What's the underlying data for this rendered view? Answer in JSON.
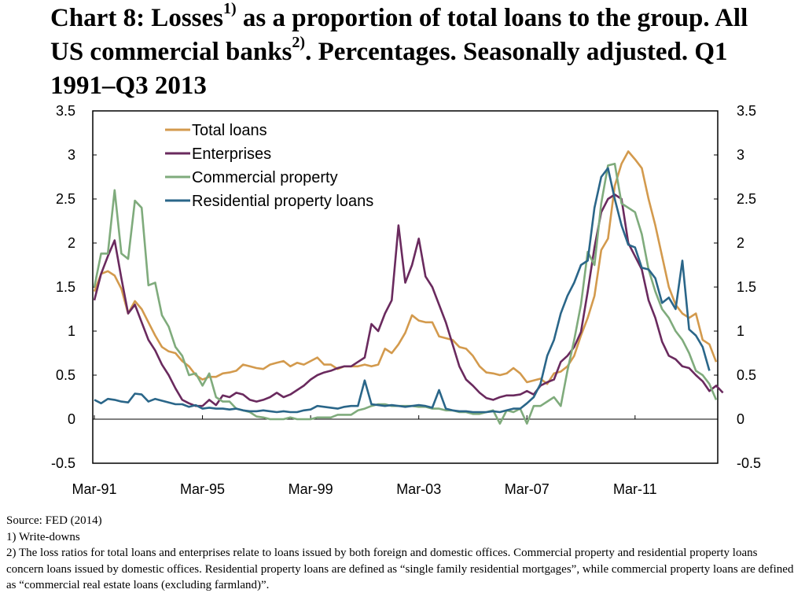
{
  "title": {
    "part1": "Chart 8: Losses",
    "sup1": "1)",
    "part2": " as a proportion of total loans to the group. All US commercial banks",
    "sup2": "2)",
    "part3": ". Percentages. Seasonally adjusted. Q1 1991–Q3 2013"
  },
  "notes": {
    "source": "Source: FED (2014)",
    "note1": "1) Write-downs",
    "note2": "2) The loss ratios for total loans and enterprises relate to loans issued by both foreign and domestic offices. Commercial property and residential property loans concern loans issued by domestic offices. Residential property loans are defined as “single family residential mortgages”, while commercial property loans are defined as “commercial real estate loans (excluding farmland)”."
  },
  "chart_data": {
    "type": "line",
    "x_start": "Q1 1991",
    "x_end": "Q3 2013",
    "x_ticks": [
      "Mar-91",
      "Mar-95",
      "Mar-99",
      "Mar-03",
      "Mar-07",
      "Mar-11"
    ],
    "y_ticks": [
      "3.5",
      "3",
      "2.5",
      "2",
      "1.5",
      "1",
      "0.5",
      "0",
      "-0.5"
    ],
    "ylim": [
      -0.5,
      3.5
    ],
    "y_axis_both_sides": true,
    "grid": false,
    "legend_position": "top-left",
    "series": [
      {
        "name": "Total loans",
        "color": "#d39a4d",
        "values": [
          1.45,
          1.65,
          1.68,
          1.63,
          1.48,
          1.2,
          1.34,
          1.25,
          1.1,
          0.95,
          0.82,
          0.77,
          0.75,
          0.66,
          0.6,
          0.5,
          0.45,
          0.48,
          0.48,
          0.52,
          0.53,
          0.55,
          0.62,
          0.6,
          0.58,
          0.57,
          0.62,
          0.64,
          0.66,
          0.6,
          0.64,
          0.62,
          0.66,
          0.7,
          0.62,
          0.62,
          0.57,
          0.6,
          0.6,
          0.6,
          0.62,
          0.6,
          0.62,
          0.8,
          0.75,
          0.85,
          0.98,
          1.18,
          1.12,
          1.1,
          1.1,
          0.94,
          0.92,
          0.9,
          0.82,
          0.8,
          0.72,
          0.6,
          0.53,
          0.52,
          0.5,
          0.52,
          0.58,
          0.52,
          0.42,
          0.44,
          0.46,
          0.4,
          0.52,
          0.54,
          0.6,
          0.72,
          0.95,
          1.15,
          1.4,
          1.92,
          2.05,
          2.65,
          2.9,
          3.04,
          2.95,
          2.85,
          2.5,
          2.2,
          1.85,
          1.5,
          1.3,
          1.2,
          1.15,
          1.2,
          0.9,
          0.85,
          0.65
        ]
      },
      {
        "name": "Enterprises",
        "color": "#6a2a5e",
        "values": [
          1.35,
          1.65,
          1.85,
          2.03,
          1.6,
          1.2,
          1.3,
          1.1,
          0.9,
          0.78,
          0.62,
          0.5,
          0.35,
          0.22,
          0.18,
          0.15,
          0.15,
          0.22,
          0.16,
          0.27,
          0.25,
          0.3,
          0.28,
          0.22,
          0.2,
          0.22,
          0.25,
          0.3,
          0.25,
          0.28,
          0.33,
          0.38,
          0.45,
          0.5,
          0.53,
          0.55,
          0.58,
          0.6,
          0.6,
          0.65,
          0.7,
          1.08,
          1.0,
          1.2,
          1.35,
          2.2,
          1.55,
          1.75,
          2.05,
          1.62,
          1.5,
          1.3,
          1.1,
          0.85,
          0.6,
          0.45,
          0.38,
          0.3,
          0.24,
          0.22,
          0.25,
          0.27,
          0.27,
          0.28,
          0.32,
          0.28,
          0.38,
          0.42,
          0.45,
          0.65,
          0.72,
          0.82,
          0.99,
          1.45,
          1.95,
          2.35,
          2.5,
          2.55,
          2.5,
          2.0,
          1.85,
          1.7,
          1.35,
          1.15,
          0.88,
          0.72,
          0.68,
          0.6,
          0.58,
          0.5,
          0.43,
          0.32,
          0.38,
          0.3
        ]
      },
      {
        "name": "Commercial property",
        "color": "#7fab7c",
        "values": [
          1.5,
          1.88,
          1.88,
          2.6,
          1.88,
          1.82,
          2.48,
          2.4,
          1.52,
          1.55,
          1.18,
          1.05,
          0.82,
          0.72,
          0.5,
          0.52,
          0.38,
          0.52,
          0.25,
          0.2,
          0.2,
          0.12,
          0.1,
          0.08,
          0.03,
          0.02,
          0.0,
          0.0,
          0.0,
          0.02,
          0.0,
          0.0,
          0.0,
          0.02,
          0.02,
          0.02,
          0.05,
          0.05,
          0.05,
          0.1,
          0.12,
          0.15,
          0.17,
          0.17,
          0.15,
          0.15,
          0.15,
          0.15,
          0.14,
          0.14,
          0.12,
          0.12,
          0.1,
          0.1,
          0.08,
          0.08,
          0.06,
          0.06,
          0.08,
          0.1,
          -0.05,
          0.1,
          0.08,
          0.12,
          -0.05,
          0.15,
          0.15,
          0.2,
          0.25,
          0.15,
          0.55,
          0.9,
          1.3,
          1.9,
          1.75,
          2.45,
          2.88,
          2.9,
          2.45,
          2.4,
          2.35,
          2.1,
          1.7,
          1.45,
          1.25,
          1.15,
          1.0,
          0.9,
          0.75,
          0.55,
          0.5,
          0.4,
          0.22
        ]
      },
      {
        "name": "Residential property loans",
        "color": "#2a6689",
        "values": [
          0.22,
          0.18,
          0.23,
          0.22,
          0.2,
          0.19,
          0.29,
          0.28,
          0.2,
          0.23,
          0.21,
          0.19,
          0.17,
          0.17,
          0.14,
          0.16,
          0.12,
          0.13,
          0.12,
          0.12,
          0.11,
          0.12,
          0.1,
          0.09,
          0.09,
          0.1,
          0.09,
          0.08,
          0.09,
          0.08,
          0.08,
          0.1,
          0.11,
          0.15,
          0.14,
          0.13,
          0.12,
          0.14,
          0.15,
          0.15,
          0.44,
          0.17,
          0.16,
          0.15,
          0.16,
          0.15,
          0.14,
          0.15,
          0.16,
          0.15,
          0.13,
          0.33,
          0.12,
          0.1,
          0.09,
          0.09,
          0.08,
          0.08,
          0.08,
          0.09,
          0.08,
          0.1,
          0.12,
          0.12,
          0.18,
          0.25,
          0.4,
          0.72,
          0.9,
          1.2,
          1.4,
          1.55,
          1.75,
          1.8,
          2.4,
          2.75,
          2.85,
          2.5,
          2.2,
          1.98,
          1.95,
          1.72,
          1.7,
          1.6,
          1.32,
          1.38,
          1.25,
          1.8,
          1.02,
          0.95,
          0.82,
          0.55
        ]
      }
    ]
  }
}
